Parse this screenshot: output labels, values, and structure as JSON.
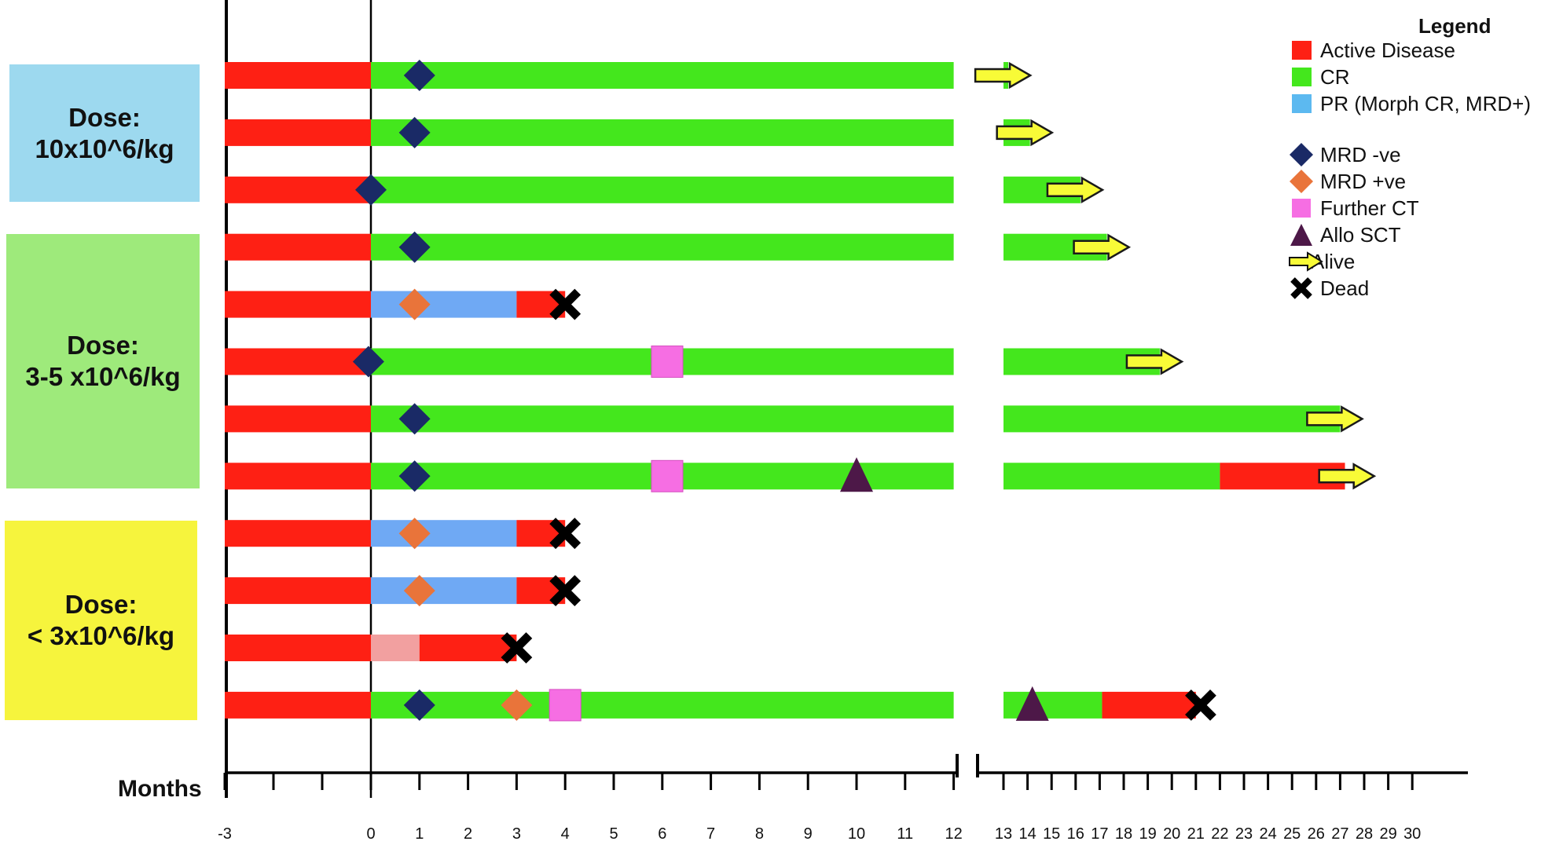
{
  "legend": {
    "title": "Legend",
    "items": [
      {
        "label": "Active Disease",
        "kind": "swatch",
        "color": "#fe2014",
        "icon": "red-square"
      },
      {
        "label": "CR",
        "kind": "swatch",
        "color": "#44e71d",
        "icon": "green-square"
      },
      {
        "label": "PR (Morph CR, MRD+)",
        "kind": "swatch",
        "color": "#5cb9f0",
        "icon": "blue-square"
      },
      {
        "label": "MRD -ve",
        "kind": "diamond",
        "color": "#1a2a66",
        "icon": "navy-diamond"
      },
      {
        "label": "MRD +ve",
        "kind": "diamond",
        "color": "#e9743a",
        "icon": "orange-diamond"
      },
      {
        "label": "Further CT",
        "kind": "square",
        "color": "#f66ee3",
        "icon": "pink-square"
      },
      {
        "label": "Allo SCT",
        "kind": "triangle",
        "color": "#4d1848",
        "icon": "purple-triangle"
      },
      {
        "label": "Alive",
        "kind": "arrow",
        "color": "#f8fb37",
        "icon": "yellow-arrow"
      },
      {
        "label": "Dead",
        "kind": "cross",
        "color": "#000000",
        "icon": "black-cross"
      }
    ]
  },
  "dose_groups": [
    {
      "lines": [
        "Dose:",
        "10x10^6/kg"
      ],
      "color": "#9dd9ef"
    },
    {
      "lines": [
        "Dose:",
        "3-5 x10^6/kg"
      ],
      "color": "#9eea7b"
    },
    {
      "lines": [
        "Dose:",
        "< 3x10^6/kg"
      ],
      "color": "#f6f43d"
    }
  ],
  "chart_data": {
    "type": "swimmer",
    "xlabel": "Months",
    "x_ticks": [
      -3,
      0,
      1,
      2,
      3,
      4,
      5,
      6,
      7,
      8,
      9,
      10,
      11,
      12,
      13,
      14,
      15,
      16,
      17,
      18,
      19,
      20,
      21,
      22,
      23,
      24,
      25,
      26,
      27,
      28,
      29,
      30
    ],
    "axis_break": [
      12,
      13
    ],
    "colors": {
      "active": "#fe2014",
      "cr": "#44e71d",
      "pr": "#6fa9f4",
      "pr_light": "#f2a0a0",
      "mrd_neg": "#1a2a66",
      "mrd_pos": "#e9743a",
      "further_ct": "#f66ee3",
      "allo_sct": "#4d1848",
      "alive": "#f8fb37",
      "dead": "#000000"
    },
    "patients": [
      {
        "segments": [
          {
            "s": -3,
            "e": 0,
            "c": "active"
          },
          {
            "s": 0,
            "e": 13.2,
            "c": "cr"
          }
        ],
        "markers": [
          {
            "t": 1,
            "k": "mrd_neg"
          },
          {
            "t": 13.2,
            "k": "alive"
          }
        ]
      },
      {
        "segments": [
          {
            "s": -3,
            "e": 0,
            "c": "active"
          },
          {
            "s": 0,
            "e": 14.1,
            "c": "cr"
          }
        ],
        "markers": [
          {
            "t": 0.9,
            "k": "mrd_neg"
          },
          {
            "t": 14.1,
            "k": "alive"
          }
        ]
      },
      {
        "segments": [
          {
            "s": -3,
            "e": 0,
            "c": "active"
          },
          {
            "s": 0,
            "e": 16.2,
            "c": "cr"
          }
        ],
        "markers": [
          {
            "t": 0,
            "k": "mrd_neg"
          },
          {
            "t": 16.2,
            "k": "alive"
          }
        ]
      },
      {
        "segments": [
          {
            "s": -3,
            "e": 0,
            "c": "active"
          },
          {
            "s": 0,
            "e": 17.3,
            "c": "cr"
          }
        ],
        "markers": [
          {
            "t": 0.9,
            "k": "mrd_neg"
          },
          {
            "t": 17.3,
            "k": "alive"
          }
        ]
      },
      {
        "segments": [
          {
            "s": -3,
            "e": 0,
            "c": "active"
          },
          {
            "s": 0,
            "e": 3,
            "c": "pr"
          },
          {
            "s": 3,
            "e": 4,
            "c": "active"
          }
        ],
        "markers": [
          {
            "t": 0.9,
            "k": "mrd_pos"
          },
          {
            "t": 4,
            "k": "dead"
          }
        ]
      },
      {
        "segments": [
          {
            "s": -3,
            "e": 0,
            "c": "active"
          },
          {
            "s": 0,
            "e": 19.5,
            "c": "cr"
          }
        ],
        "markers": [
          {
            "t": -0.05,
            "k": "mrd_neg"
          },
          {
            "t": 6.1,
            "k": "further_ct"
          },
          {
            "t": 19.5,
            "k": "alive"
          }
        ]
      },
      {
        "segments": [
          {
            "s": -3,
            "e": 0,
            "c": "active"
          },
          {
            "s": 0,
            "e": 27,
            "c": "cr"
          }
        ],
        "markers": [
          {
            "t": 0.9,
            "k": "mrd_neg"
          },
          {
            "t": 27,
            "k": "alive"
          }
        ]
      },
      {
        "segments": [
          {
            "s": -3,
            "e": 0,
            "c": "active"
          },
          {
            "s": 0,
            "e": 22,
            "c": "cr"
          },
          {
            "s": 22,
            "e": 27.2,
            "c": "active"
          }
        ],
        "markers": [
          {
            "t": 0.9,
            "k": "mrd_neg"
          },
          {
            "t": 6.1,
            "k": "further_ct"
          },
          {
            "t": 10,
            "k": "allo_sct"
          },
          {
            "t": 27.5,
            "k": "alive"
          }
        ]
      },
      {
        "segments": [
          {
            "s": -3,
            "e": 0,
            "c": "active"
          },
          {
            "s": 0,
            "e": 3,
            "c": "pr"
          },
          {
            "s": 3,
            "e": 4,
            "c": "active"
          }
        ],
        "markers": [
          {
            "t": 0.9,
            "k": "mrd_pos"
          },
          {
            "t": 4,
            "k": "dead"
          }
        ]
      },
      {
        "segments": [
          {
            "s": -3,
            "e": 0,
            "c": "active"
          },
          {
            "s": 0,
            "e": 3,
            "c": "pr"
          },
          {
            "s": 3,
            "e": 4,
            "c": "active"
          }
        ],
        "markers": [
          {
            "t": 1,
            "k": "mrd_pos"
          },
          {
            "t": 4,
            "k": "dead"
          }
        ]
      },
      {
        "segments": [
          {
            "s": -3,
            "e": 0,
            "c": "active"
          },
          {
            "s": 0,
            "e": 1,
            "c": "pr_light"
          },
          {
            "s": 1,
            "e": 3,
            "c": "active"
          }
        ],
        "markers": [
          {
            "t": 3,
            "k": "dead"
          }
        ]
      },
      {
        "segments": [
          {
            "s": -3,
            "e": 0,
            "c": "active"
          },
          {
            "s": 0,
            "e": 17.1,
            "c": "cr"
          },
          {
            "s": 17.1,
            "e": 21,
            "c": "active"
          }
        ],
        "markers": [
          {
            "t": 1,
            "k": "mrd_neg"
          },
          {
            "t": 3,
            "k": "mrd_pos"
          },
          {
            "t": 4,
            "k": "further_ct"
          },
          {
            "t": 14.2,
            "k": "allo_sct"
          },
          {
            "t": 21.2,
            "k": "dead"
          }
        ]
      }
    ]
  }
}
